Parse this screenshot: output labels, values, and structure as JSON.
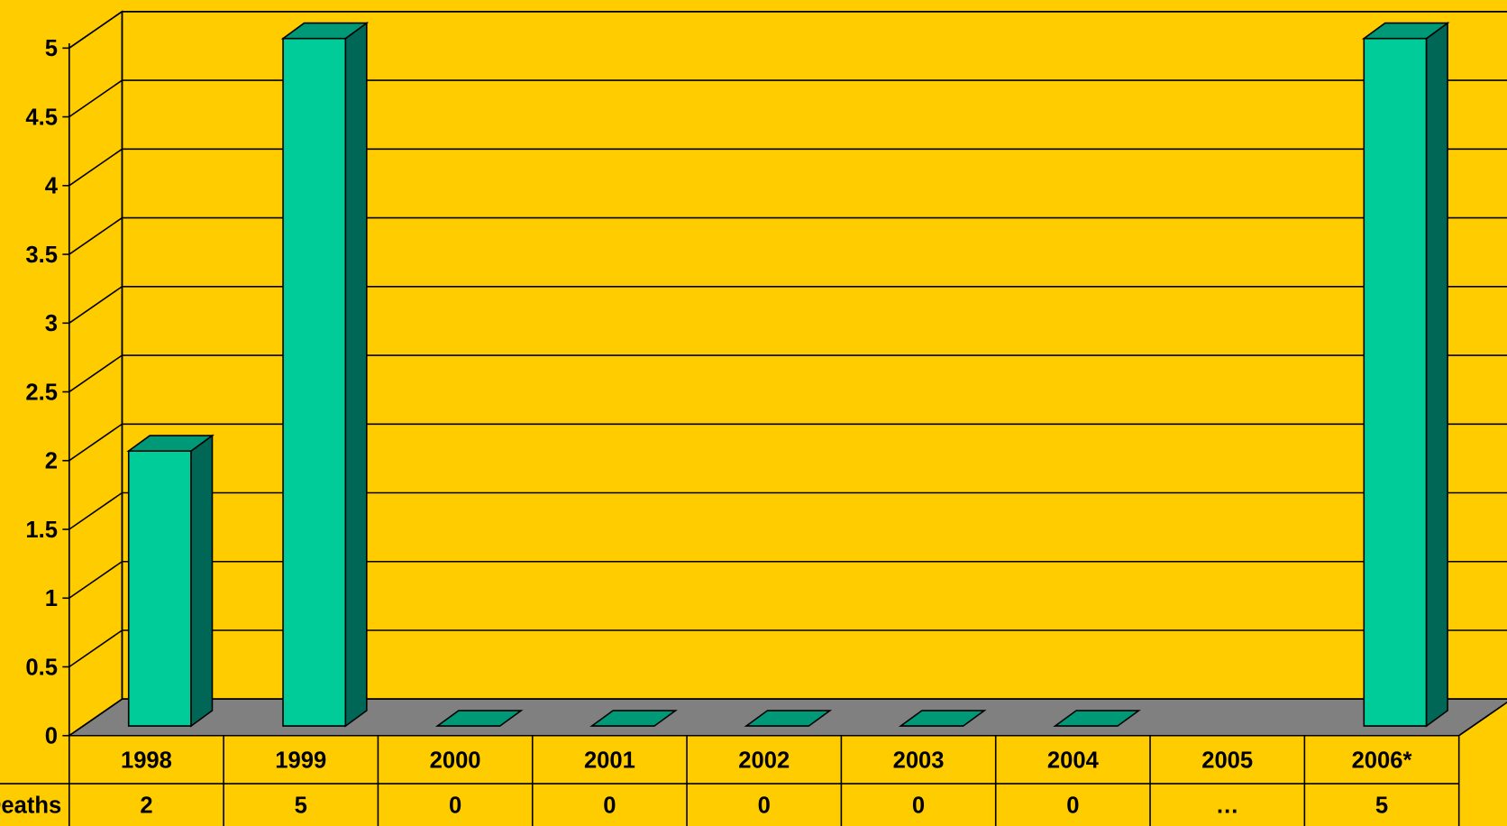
{
  "chart_data": {
    "type": "bar3d",
    "categories": [
      "1998",
      "1999",
      "2000",
      "2001",
      "2002",
      "2003",
      "2004",
      "2005",
      "2006*"
    ],
    "series": [
      {
        "name": "Deaths",
        "color": "#00CC99",
        "values": [
          2,
          5,
          0,
          0,
          0,
          0,
          0,
          null,
          5
        ],
        "value_labels": [
          "2",
          "5",
          "0",
          "0",
          "0",
          "0",
          "0",
          "…",
          "5"
        ]
      }
    ],
    "ylim": [
      0,
      5
    ],
    "yticks": [
      0,
      0.5,
      1,
      1.5,
      2,
      2.5,
      3,
      3.5,
      4,
      4.5,
      5
    ],
    "grid": true,
    "data_table": true
  }
}
